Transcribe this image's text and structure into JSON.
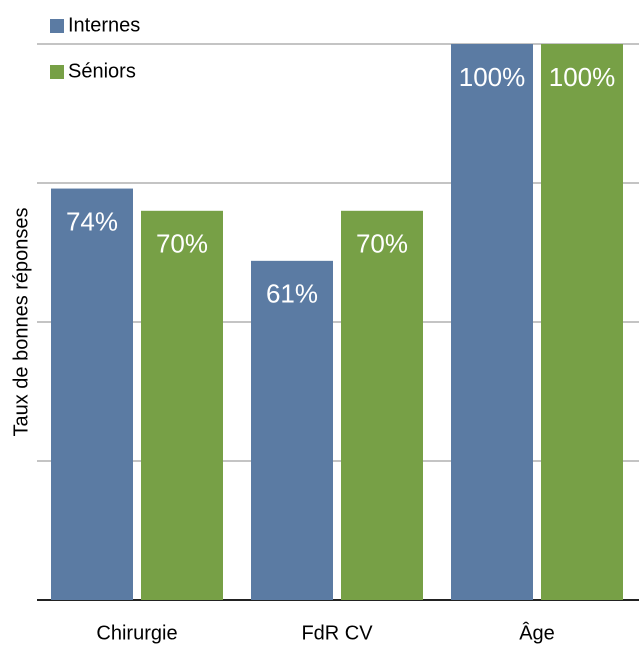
{
  "chart_data": {
    "type": "bar",
    "y_label": "Taux de bonnes réponses",
    "categories": [
      "Chirurgie",
      "FdR CV",
      "Âge"
    ],
    "series": [
      {
        "name": "Internes",
        "color": "#5b7ba3",
        "values": [
          74,
          61,
          100
        ],
        "value_labels": [
          "74%",
          "61%",
          "100%"
        ]
      },
      {
        "name": "Séniors",
        "color": "#77a046",
        "values": [
          70,
          70,
          100
        ],
        "value_labels": [
          "70%",
          "70%",
          "100%"
        ]
      }
    ],
    "ylim": [
      0,
      100
    ],
    "yticks": [
      0,
      25,
      50,
      75,
      100
    ],
    "grid": true,
    "legend": "top-left"
  }
}
